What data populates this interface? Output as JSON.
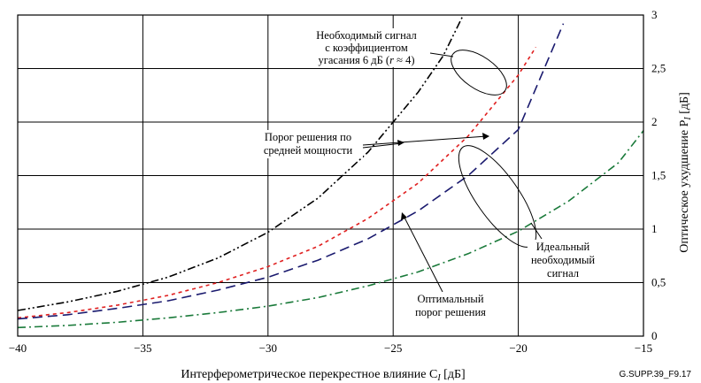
{
  "chart_data": {
    "type": "line",
    "title": "",
    "xlabel": "Интерферометрическое перекрестное влияние C",
    "xlabel_sub": "I",
    "xlabel_unit": " [дБ]",
    "ylabel": "Оптическое ухудшение P",
    "ylabel_sub": "I",
    "ylabel_unit": " [дБ]",
    "xlim": [
      -40,
      -15
    ],
    "ylim": [
      0,
      3
    ],
    "x_ticks": [
      -40,
      -35,
      -30,
      -25,
      -20,
      -15
    ],
    "x_tick_labels": [
      "−40",
      "−35",
      "−30",
      "−25",
      "−20",
      "−15"
    ],
    "y_ticks": [
      0,
      0.5,
      1,
      1.5,
      2,
      2.5,
      3
    ],
    "y_tick_labels": [
      "0",
      "0,5",
      "1",
      "1,5",
      "2",
      "2,5",
      "3"
    ],
    "grid": true,
    "legend": "none",
    "series": [
      {
        "style": "dash-dot-dot",
        "color": "#000000",
        "x": [
          -40,
          -38,
          -36,
          -34,
          -32,
          -30,
          -28,
          -26,
          -24,
          -23,
          -22.2
        ],
        "y": [
          0.24,
          0.32,
          0.42,
          0.55,
          0.73,
          0.97,
          1.29,
          1.72,
          2.28,
          2.62,
          3.0
        ]
      },
      {
        "style": "short-dash",
        "color": "#e02020",
        "x": [
          -40,
          -38,
          -36,
          -34,
          -32,
          -30,
          -28,
          -26,
          -24,
          -22,
          -20,
          -19.3
        ],
        "y": [
          0.17,
          0.22,
          0.29,
          0.38,
          0.5,
          0.65,
          0.84,
          1.1,
          1.43,
          1.87,
          2.44,
          2.7
        ]
      },
      {
        "style": "long-dash",
        "color": "#1a1a6e",
        "x": [
          -40,
          -38,
          -36,
          -34,
          -32,
          -30,
          -28,
          -26,
          -24,
          -22,
          -20,
          -18.2
        ],
        "y": [
          0.16,
          0.2,
          0.26,
          0.33,
          0.43,
          0.55,
          0.71,
          0.91,
          1.17,
          1.5,
          1.93,
          2.92
        ]
      },
      {
        "style": "dash-dot",
        "color": "#1a7a3a",
        "x": [
          -40,
          -38,
          -36,
          -34,
          -32,
          -30,
          -28,
          -26,
          -24,
          -22,
          -20,
          -18,
          -16,
          -15
        ],
        "y": [
          0.08,
          0.1,
          0.13,
          0.17,
          0.22,
          0.28,
          0.36,
          0.47,
          0.6,
          0.77,
          0.98,
          1.26,
          1.62,
          1.92
        ]
      }
    ],
    "annotations": [
      {
        "lines": [
          "Необходимый сигнал",
          "с коэффициентом"
        ],
        "line3": "угасания 6 дБ (",
        "line3_italic": "r",
        "line3_end": " ≈ 4)"
      },
      {
        "lines": [
          "Порог решения по",
          "средней мощности"
        ]
      },
      {
        "lines": [
          "Идеальный",
          "необходимый",
          "сигнал"
        ]
      },
      {
        "lines": [
          "Оптимальный",
          "порог решения"
        ]
      }
    ],
    "figure_id": "G.SUPP.39_F9.17"
  }
}
